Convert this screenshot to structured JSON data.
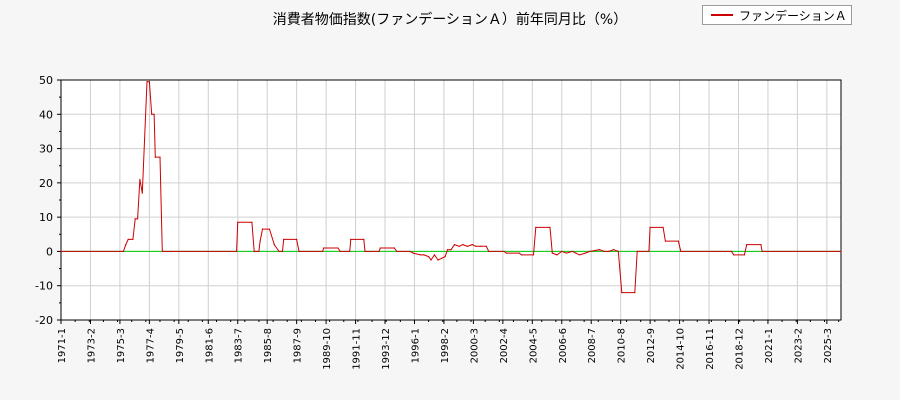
{
  "chart_data": {
    "type": "line",
    "title": "消費者物価指数(ファンデーションＡ）前年同月比（%）",
    "xlabel": "",
    "ylabel": "",
    "ylim": [
      -20,
      50
    ],
    "xlim": [
      "1971-01",
      "2026-03"
    ],
    "yticks": [
      50,
      40,
      30,
      20,
      10,
      0,
      -10,
      -20
    ],
    "xtick_labels": [
      "1971-1",
      "1973-2",
      "1975-3",
      "1977-4",
      "1979-5",
      "1981-6",
      "1983-7",
      "1985-8",
      "1987-9",
      "1989-10",
      "1991-11",
      "1993-12",
      "1996-1",
      "1998-2",
      "2000-3",
      "2002-4",
      "2004-5",
      "2006-6",
      "2008-7",
      "2010-8",
      "2012-9",
      "2014-10",
      "2016-11",
      "2018-12",
      "2021-1",
      "2023-2",
      "2025-3"
    ],
    "grid": true,
    "legend_position": "top-right",
    "zero_line_color": "#00cc00",
    "series": [
      {
        "name": "ファンデーションＡ",
        "color": "#cc0000",
        "points": [
          [
            "1971-01",
            0
          ],
          [
            "1975-06",
            0
          ],
          [
            "1975-08",
            2
          ],
          [
            "1975-10",
            3.5
          ],
          [
            "1976-02",
            3.5
          ],
          [
            "1976-04",
            9.5
          ],
          [
            "1976-06",
            9.5
          ],
          [
            "1976-08",
            21
          ],
          [
            "1976-10",
            17
          ],
          [
            "1977-02",
            49.5
          ],
          [
            "1977-04",
            49.5
          ],
          [
            "1977-06",
            40
          ],
          [
            "1977-08",
            40
          ],
          [
            "1977-09",
            27.5
          ],
          [
            "1978-01",
            27.5
          ],
          [
            "1978-03",
            0
          ],
          [
            "1983-06",
            0
          ],
          [
            "1983-07",
            8.5
          ],
          [
            "1984-07",
            8.5
          ],
          [
            "1984-09",
            0
          ],
          [
            "1985-01",
            0
          ],
          [
            "1985-02",
            3
          ],
          [
            "1985-04",
            6.5
          ],
          [
            "1985-10",
            6.5
          ],
          [
            "1986-02",
            2
          ],
          [
            "1986-06",
            0
          ],
          [
            "1986-09",
            0
          ],
          [
            "1986-10",
            3.5
          ],
          [
            "1987-09",
            3.5
          ],
          [
            "1987-11",
            0
          ],
          [
            "1989-07",
            0
          ],
          [
            "1989-08",
            1
          ],
          [
            "1990-08",
            1
          ],
          [
            "1990-10",
            0
          ],
          [
            "1991-06",
            0
          ],
          [
            "1991-07",
            3.5
          ],
          [
            "1992-06",
            3.5
          ],
          [
            "1992-07",
            0
          ],
          [
            "1993-07",
            0
          ],
          [
            "1993-08",
            1
          ],
          [
            "1994-08",
            1
          ],
          [
            "1994-10",
            0
          ],
          [
            "1995-09",
            0
          ],
          [
            "1995-12",
            -0.5
          ],
          [
            "1996-06",
            -1
          ],
          [
            "1996-09",
            -1
          ],
          [
            "1997-01",
            -1.5
          ],
          [
            "1997-03",
            -2.5
          ],
          [
            "1997-06",
            -1
          ],
          [
            "1997-09",
            -2.5
          ],
          [
            "1997-12",
            -2
          ],
          [
            "1998-03",
            -1.5
          ],
          [
            "1998-05",
            0.5
          ],
          [
            "1998-08",
            0.5
          ],
          [
            "1998-11",
            2
          ],
          [
            "1999-03",
            1.5
          ],
          [
            "1999-06",
            2
          ],
          [
            "1999-10",
            1.5
          ],
          [
            "2000-02",
            2
          ],
          [
            "2000-05",
            1.5
          ],
          [
            "2000-09",
            1.5
          ],
          [
            "2001-02",
            1.5
          ],
          [
            "2001-04",
            0
          ],
          [
            "2002-05",
            0
          ],
          [
            "2002-07",
            -0.5
          ],
          [
            "2003-06",
            -0.5
          ],
          [
            "2003-08",
            -1
          ],
          [
            "2004-06",
            -1
          ],
          [
            "2004-08",
            7
          ],
          [
            "2005-08",
            7
          ],
          [
            "2005-10",
            -0.5
          ],
          [
            "2006-02",
            -1
          ],
          [
            "2006-06",
            0
          ],
          [
            "2006-10",
            -0.5
          ],
          [
            "2007-03",
            0
          ],
          [
            "2007-06",
            -0.5
          ],
          [
            "2007-09",
            -1
          ],
          [
            "2008-02",
            -0.5
          ],
          [
            "2008-06",
            0
          ],
          [
            "2009-02",
            0.5
          ],
          [
            "2009-06",
            0
          ],
          [
            "2009-10",
            0
          ],
          [
            "2010-02",
            0.5
          ],
          [
            "2010-06",
            0
          ],
          [
            "2010-09",
            -12
          ],
          [
            "2011-08",
            -12
          ],
          [
            "2011-10",
            0
          ],
          [
            "2012-08",
            0
          ],
          [
            "2012-09",
            7
          ],
          [
            "2013-08",
            7
          ],
          [
            "2013-10",
            3
          ],
          [
            "2014-09",
            3
          ],
          [
            "2014-11",
            0
          ],
          [
            "2018-06",
            0
          ],
          [
            "2018-08",
            -1
          ],
          [
            "2019-05",
            -1
          ],
          [
            "2019-07",
            2
          ],
          [
            "2020-07",
            2
          ],
          [
            "2020-08",
            0
          ],
          [
            "2026-03",
            0
          ]
        ]
      }
    ]
  }
}
